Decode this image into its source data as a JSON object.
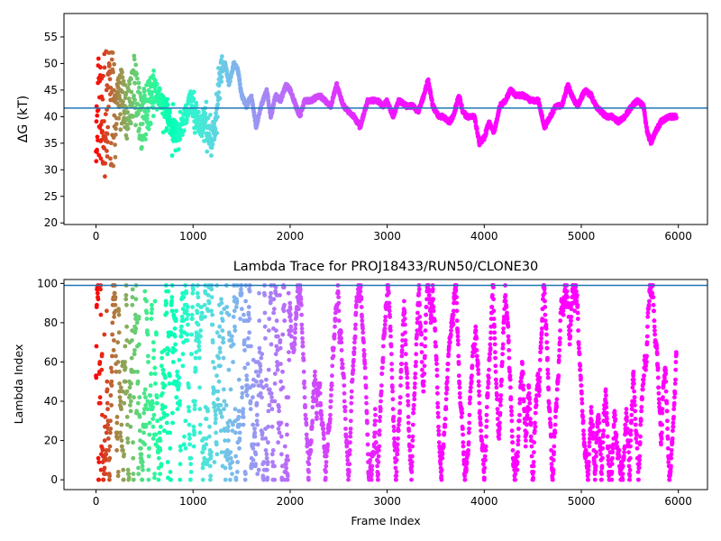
{
  "chart_data": [
    {
      "type": "scatter",
      "title": "",
      "xlabel": "",
      "ylabel": "ΔG (kT)",
      "xlim": [
        -330,
        6300
      ],
      "ylim": [
        19.7,
        59.4
      ],
      "xticks": [
        0,
        1000,
        2000,
        3000,
        4000,
        5000,
        6000
      ],
      "xtick_labels": [
        "0",
        "1000",
        "2000",
        "3000",
        "4000",
        "5000",
        "6000"
      ],
      "yticks": [
        20,
        25,
        30,
        35,
        40,
        45,
        50,
        55
      ],
      "ytick_labels": [
        "20",
        "25",
        "30",
        "35",
        "40",
        "45",
        "50",
        "55"
      ],
      "hline": {
        "y": 41.6,
        "color": "#1f77b4"
      },
      "colormap": "rainbow (red = early frames, violet = late frames)",
      "x_max": 5980,
      "trend": [
        [
          0,
          42
        ],
        [
          60,
          38
        ],
        [
          130,
          43
        ],
        [
          200,
          41
        ],
        [
          260,
          44
        ],
        [
          320,
          40
        ],
        [
          400,
          46
        ],
        [
          470,
          38
        ],
        [
          530,
          42
        ],
        [
          600,
          45
        ],
        [
          660,
          43
        ],
        [
          720,
          41
        ],
        [
          780,
          38
        ],
        [
          850,
          36
        ],
        [
          900,
          39
        ],
        [
          980,
          43
        ],
        [
          1020,
          41
        ],
        [
          1080,
          38
        ],
        [
          1120,
          40
        ],
        [
          1180,
          36
        ],
        [
          1230,
          38
        ],
        [
          1280,
          48
        ],
        [
          1330,
          50
        ],
        [
          1370,
          46
        ],
        [
          1420,
          50
        ],
        [
          1460,
          49
        ],
        [
          1500,
          44
        ],
        [
          1550,
          42
        ],
        [
          1600,
          44
        ],
        [
          1650,
          38
        ],
        [
          1700,
          42
        ],
        [
          1760,
          45
        ],
        [
          1800,
          40
        ],
        [
          1850,
          44
        ],
        [
          1900,
          43
        ],
        [
          1960,
          46
        ],
        [
          2000,
          45
        ],
        [
          2040,
          43
        ],
        [
          2100,
          40
        ],
        [
          2150,
          43
        ],
        [
          2220,
          43
        ],
        [
          2300,
          44
        ],
        [
          2360,
          43
        ],
        [
          2420,
          42
        ],
        [
          2480,
          46
        ],
        [
          2550,
          42
        ],
        [
          2600,
          41
        ],
        [
          2660,
          40
        ],
        [
          2720,
          38
        ],
        [
          2800,
          43
        ],
        [
          2900,
          43
        ],
        [
          2960,
          42
        ],
        [
          3000,
          43
        ],
        [
          3060,
          40
        ],
        [
          3120,
          43
        ],
        [
          3200,
          42
        ],
        [
          3260,
          42
        ],
        [
          3320,
          41
        ],
        [
          3380,
          44
        ],
        [
          3420,
          47
        ],
        [
          3470,
          42
        ],
        [
          3530,
          40
        ],
        [
          3580,
          40
        ],
        [
          3640,
          39
        ],
        [
          3680,
          40
        ],
        [
          3740,
          44
        ],
        [
          3780,
          41
        ],
        [
          3820,
          40
        ],
        [
          3900,
          40
        ],
        [
          3950,
          35
        ],
        [
          4000,
          36
        ],
        [
          4050,
          39
        ],
        [
          4100,
          37
        ],
        [
          4160,
          42
        ],
        [
          4220,
          43
        ],
        [
          4270,
          45
        ],
        [
          4330,
          44
        ],
        [
          4400,
          44
        ],
        [
          4480,
          43
        ],
        [
          4560,
          43
        ],
        [
          4620,
          38
        ],
        [
          4680,
          40
        ],
        [
          4740,
          42
        ],
        [
          4800,
          42
        ],
        [
          4860,
          46
        ],
        [
          4900,
          44
        ],
        [
          4960,
          42
        ],
        [
          5040,
          45
        ],
        [
          5100,
          44
        ],
        [
          5150,
          42
        ],
        [
          5200,
          41
        ],
        [
          5260,
          40
        ],
        [
          5320,
          40
        ],
        [
          5380,
          39
        ],
        [
          5450,
          40
        ],
        [
          5520,
          42
        ],
        [
          5580,
          43
        ],
        [
          5640,
          42
        ],
        [
          5680,
          37
        ],
        [
          5720,
          35
        ],
        [
          5760,
          37
        ],
        [
          5820,
          39
        ],
        [
          5900,
          40
        ],
        [
          5980,
          40
        ]
      ]
    },
    {
      "type": "scatter",
      "title": "Lambda Trace for PROJ18433/RUN50/CLONE30",
      "xlabel": "Frame Index",
      "ylabel": "Lambda Index",
      "xlim": [
        -330,
        6300
      ],
      "ylim": [
        -5,
        102
      ],
      "xticks": [
        0,
        1000,
        2000,
        3000,
        4000,
        5000,
        6000
      ],
      "xtick_labels": [
        "0",
        "1000",
        "2000",
        "3000",
        "4000",
        "5000",
        "6000"
      ],
      "yticks": [
        0,
        20,
        40,
        60,
        80,
        100
      ],
      "ytick_labels": [
        "0",
        "20",
        "40",
        "60",
        "80",
        "100"
      ],
      "hline": {
        "y": 99,
        "color": "#1f77b4"
      },
      "colormap": "rainbow (red = early frames, violet = late frames)",
      "x_max": 5980,
      "lambda_range": [
        0,
        99
      ]
    }
  ]
}
